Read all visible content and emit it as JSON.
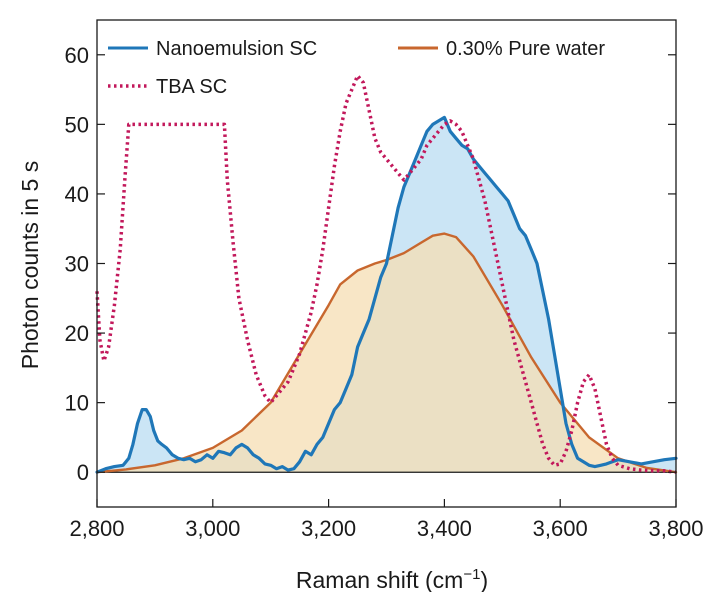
{
  "chart_data": {
    "type": "line",
    "title": "",
    "xlabel": "Raman shift (cm",
    "xlabel_sup": "−1",
    "xlabel_end": ")",
    "ylabel": "Photon counts in 5 s",
    "xlim": [
      2800,
      3800
    ],
    "ylim": [
      -5,
      65
    ],
    "xticks": [
      2800,
      3000,
      3200,
      3400,
      3600,
      3800
    ],
    "xtick_labels": [
      "2,800",
      "3,000",
      "3,200",
      "3,400",
      "3,600",
      "3,800"
    ],
    "yticks": [
      0,
      10,
      20,
      30,
      40,
      50,
      60
    ],
    "ytick_labels": [
      "0",
      "10",
      "20",
      "30",
      "40",
      "50",
      "60"
    ],
    "legend_position": "top",
    "series": [
      {
        "name": "Nanoemulsion SC",
        "color": "#1f77b8",
        "fill": "#b9dcf2",
        "style": "solid",
        "x": [
          2800,
          2815,
          2830,
          2845,
          2855,
          2862,
          2870,
          2878,
          2885,
          2892,
          2898,
          2905,
          2912,
          2920,
          2930,
          2940,
          2950,
          2960,
          2970,
          2980,
          2990,
          3000,
          3010,
          3020,
          3030,
          3040,
          3050,
          3060,
          3070,
          3080,
          3090,
          3100,
          3110,
          3120,
          3130,
          3140,
          3150,
          3160,
          3170,
          3180,
          3190,
          3200,
          3210,
          3220,
          3230,
          3240,
          3250,
          3260,
          3270,
          3280,
          3290,
          3300,
          3310,
          3320,
          3330,
          3340,
          3350,
          3360,
          3370,
          3380,
          3390,
          3400,
          3410,
          3420,
          3430,
          3440,
          3450,
          3460,
          3470,
          3480,
          3490,
          3500,
          3510,
          3520,
          3530,
          3540,
          3550,
          3560,
          3570,
          3580,
          3590,
          3600,
          3610,
          3620,
          3630,
          3640,
          3650,
          3660,
          3670,
          3680,
          3690,
          3700,
          3720,
          3740,
          3760,
          3780,
          3800
        ],
        "y": [
          0,
          0.5,
          0.8,
          1.0,
          2,
          4,
          7,
          9,
          9,
          8,
          6,
          4.5,
          4,
          3.5,
          2.5,
          2,
          1.8,
          2,
          1.5,
          1.8,
          2.5,
          2,
          3,
          2.8,
          2.5,
          3.5,
          4,
          3.5,
          2.5,
          2,
          1.2,
          1,
          0.5,
          0.8,
          0.3,
          0.5,
          1.5,
          3,
          2.5,
          4,
          5,
          7,
          9,
          10,
          12,
          14,
          18,
          20,
          22,
          25,
          28,
          30,
          34,
          38,
          41,
          43,
          45,
          47,
          49,
          50,
          50.5,
          51,
          49,
          48,
          47,
          46.5,
          45,
          44,
          43,
          42,
          41,
          40,
          39,
          37,
          35,
          34,
          32,
          30,
          26,
          22,
          17,
          12,
          7,
          4,
          2,
          1.5,
          1,
          0.8,
          1,
          1.2,
          1.5,
          1.8,
          1.5,
          1.2,
          1.5,
          1.8,
          2
        ]
      },
      {
        "name": "0.30% Pure water",
        "color": "#c8672e",
        "fill": "#f5deb3",
        "style": "solid",
        "x": [
          2800,
          2850,
          2900,
          2950,
          3000,
          3050,
          3100,
          3150,
          3200,
          3220,
          3250,
          3280,
          3300,
          3330,
          3360,
          3380,
          3400,
          3420,
          3450,
          3500,
          3550,
          3600,
          3650,
          3700,
          3750,
          3800
        ],
        "y": [
          0,
          0.4,
          1,
          2,
          3.5,
          6,
          10,
          17,
          24,
          27,
          29,
          30,
          30.5,
          31.5,
          33,
          34,
          34.3,
          33.8,
          31,
          24,
          16.5,
          10,
          5,
          2,
          0.6,
          0
        ]
      },
      {
        "name": "TBA SC",
        "color": "#c2185b",
        "fill": "none",
        "style": "dotted",
        "x": [
          2800,
          2805,
          2812,
          2820,
          2830,
          2840,
          2848,
          2855,
          3020,
          3025,
          3035,
          3045,
          3060,
          3075,
          3090,
          3100,
          3110,
          3120,
          3130,
          3140,
          3150,
          3160,
          3170,
          3180,
          3190,
          3200,
          3210,
          3220,
          3230,
          3240,
          3250,
          3260,
          3270,
          3280,
          3290,
          3300,
          3310,
          3320,
          3330,
          3340,
          3350,
          3360,
          3370,
          3380,
          3390,
          3400,
          3410,
          3420,
          3430,
          3440,
          3450,
          3460,
          3470,
          3480,
          3490,
          3500,
          3510,
          3520,
          3530,
          3540,
          3550,
          3560,
          3570,
          3580,
          3590,
          3600,
          3610,
          3620,
          3630,
          3640,
          3650,
          3660,
          3670,
          3680,
          3690,
          3700,
          3720,
          3740,
          3760,
          3780,
          3800
        ],
        "y": [
          26,
          19,
          16,
          18,
          24,
          32,
          42,
          50,
          50,
          42,
          33,
          25,
          19,
          14,
          11,
          10,
          11,
          12,
          13,
          15,
          17,
          20,
          23,
          27,
          32,
          38,
          44,
          49,
          53,
          55,
          57,
          56,
          52,
          48,
          46,
          45,
          44,
          43,
          42,
          43,
          44,
          45,
          47,
          48,
          49,
          50,
          50.5,
          50,
          49,
          47,
          45,
          42,
          39,
          35,
          31,
          27,
          23,
          19,
          16,
          13,
          10,
          7,
          4,
          2,
          1,
          1.2,
          3,
          6,
          10,
          13,
          14,
          12,
          8,
          4,
          2,
          1,
          0.5,
          0.3,
          0.2,
          0.2,
          0
        ]
      }
    ]
  }
}
